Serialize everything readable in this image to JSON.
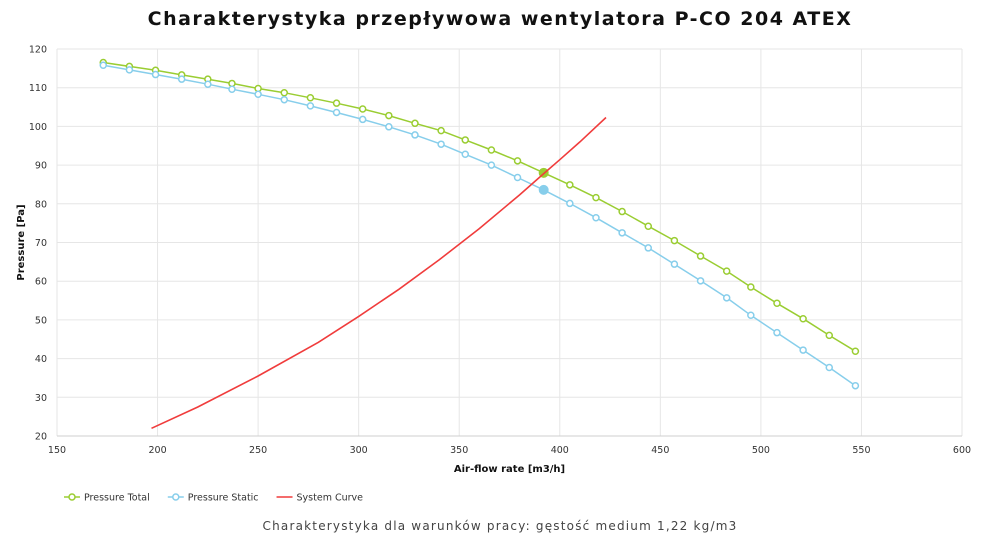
{
  "chart_data": {
    "type": "line",
    "title": "Charakterystyka przepływowa wentylatora P-CO 204 ATEX",
    "subtitle": "Charakterystyka dla warunków pracy: gęstość medium 1,22 kg/m3",
    "xlabel": "Air-flow rate [m3/h]",
    "ylabel": "Pressure [Pa]",
    "xlim": [
      150,
      600
    ],
    "ylim": [
      20,
      120
    ],
    "x_ticks": [
      150,
      200,
      250,
      300,
      350,
      400,
      450,
      500,
      550,
      600
    ],
    "y_ticks": [
      20,
      30,
      40,
      50,
      60,
      70,
      80,
      90,
      100,
      110,
      120
    ],
    "grid": true,
    "legend_position": "bottom-left",
    "series": [
      {
        "name": "Pressure Total",
        "color": "#9acd32",
        "marker": "circle",
        "x": [
          173,
          186,
          199,
          212,
          225,
          237,
          250,
          263,
          276,
          289,
          302,
          315,
          328,
          341,
          353,
          366,
          379,
          392,
          405,
          418,
          431,
          444,
          457,
          470,
          483,
          495,
          508,
          521,
          534,
          547
        ],
        "y": [
          116.5,
          115.5,
          114.5,
          113.3,
          112.2,
          111.1,
          109.8,
          108.7,
          107.4,
          106.0,
          104.5,
          102.8,
          100.8,
          98.9,
          96.5,
          93.9,
          91.1,
          88.0,
          84.9,
          81.6,
          78.0,
          74.2,
          70.5,
          66.5,
          62.6,
          58.5,
          54.3,
          50.3,
          46.0,
          41.9
        ],
        "highlight": {
          "x": 392,
          "y": 88.0
        }
      },
      {
        "name": "Pressure Static",
        "color": "#87ceeb",
        "marker": "circle",
        "x": [
          173,
          186,
          199,
          212,
          225,
          237,
          250,
          263,
          276,
          289,
          302,
          315,
          328,
          341,
          353,
          366,
          379,
          392,
          405,
          418,
          431,
          444,
          457,
          470,
          483,
          495,
          508,
          521,
          534,
          547
        ],
        "y": [
          115.8,
          114.6,
          113.4,
          112.2,
          110.9,
          109.6,
          108.3,
          106.9,
          105.3,
          103.6,
          101.8,
          99.9,
          97.8,
          95.4,
          92.8,
          90.0,
          86.8,
          83.6,
          80.1,
          76.4,
          72.5,
          68.6,
          64.4,
          60.1,
          55.7,
          51.2,
          46.7,
          42.2,
          37.7,
          33.0
        ],
        "highlight": {
          "x": 392,
          "y": 83.6
        }
      },
      {
        "name": "System Curve",
        "color": "#f03c3c",
        "marker": "none",
        "x": [
          197,
          220,
          250,
          280,
          300,
          320,
          340,
          360,
          380,
          392,
          400,
          410,
          423
        ],
        "y": [
          22.0,
          27.5,
          35.5,
          44.2,
          50.9,
          57.9,
          65.5,
          73.6,
          82.3,
          87.8,
          91.4,
          96.0,
          102.3
        ]
      }
    ]
  }
}
